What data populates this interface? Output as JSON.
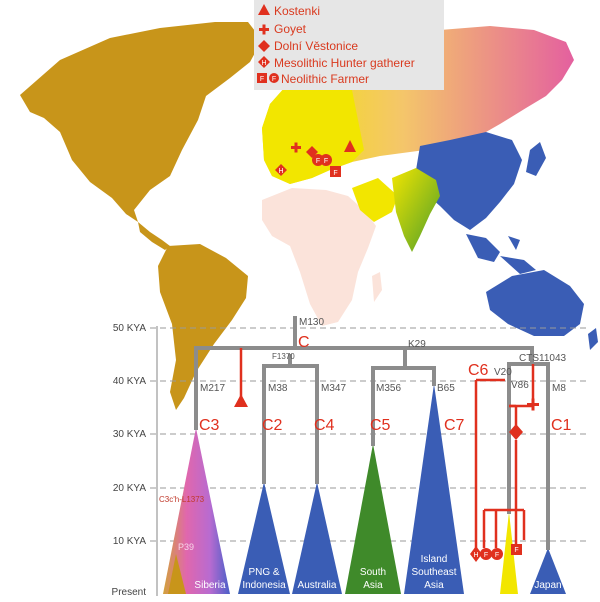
{
  "legend": {
    "items": [
      {
        "label": "Kostenki",
        "symbol": "triangle"
      },
      {
        "label": "Goyet",
        "symbol": "cross"
      },
      {
        "label": "Dolní Věstonice",
        "symbol": "diamond"
      },
      {
        "label": "Mesolithic Hunter gatherer",
        "symbol": "H-diamond"
      },
      {
        "label": "Neolithic Farmer",
        "symbol": "F-square-and-diamond"
      }
    ],
    "marker_letters": {
      "hunter": "H",
      "farmer": "F"
    }
  },
  "time_axis": {
    "labels": [
      "50 KYA",
      "40 KYA",
      "30 KYA",
      "20 KYA",
      "10 KYA",
      "Present"
    ]
  },
  "mutations": {
    "root": "M130",
    "c2_c4_split": "F1370",
    "k29": "K29",
    "cts": "CTS11043",
    "m217": "M217",
    "m38": "M38",
    "m347": "M347",
    "m356": "M356",
    "b65": "B65",
    "v20": "V20",
    "v86": "V86",
    "m8": "M8",
    "l1373": "C3c'h-L1373",
    "p39": "P39"
  },
  "clades": {
    "root": "C",
    "c1": "C1",
    "c2": "C2",
    "c3": "C3",
    "c4": "C4",
    "c5": "C5",
    "c6": "C6",
    "c7": "C7"
  },
  "regions": {
    "siberia": "Siberia",
    "png_1": "PNG &",
    "png_2": "Indonesia",
    "australia": "Australia",
    "south_asia_1": "South",
    "south_asia_2": "Asia",
    "isea_1": "Island",
    "isea_2": "Southeast",
    "isea_3": "Asia",
    "japan": "Japan"
  },
  "colors": {
    "americas": "#c8951a",
    "africa": "#fbe3da",
    "europe": "#f2e600",
    "east_asia": "#3a5db5",
    "south_asia": "#6bae2d",
    "siberia_pink": "#e56bb0",
    "marker_red": "#e0301e",
    "tree_gray": "#8c8c8c",
    "triangle_blue": "#3a5db5",
    "triangle_green": "#3f8a2a",
    "triangle_yellow": "#f2e600",
    "triangle_gold": "#c8951a"
  }
}
